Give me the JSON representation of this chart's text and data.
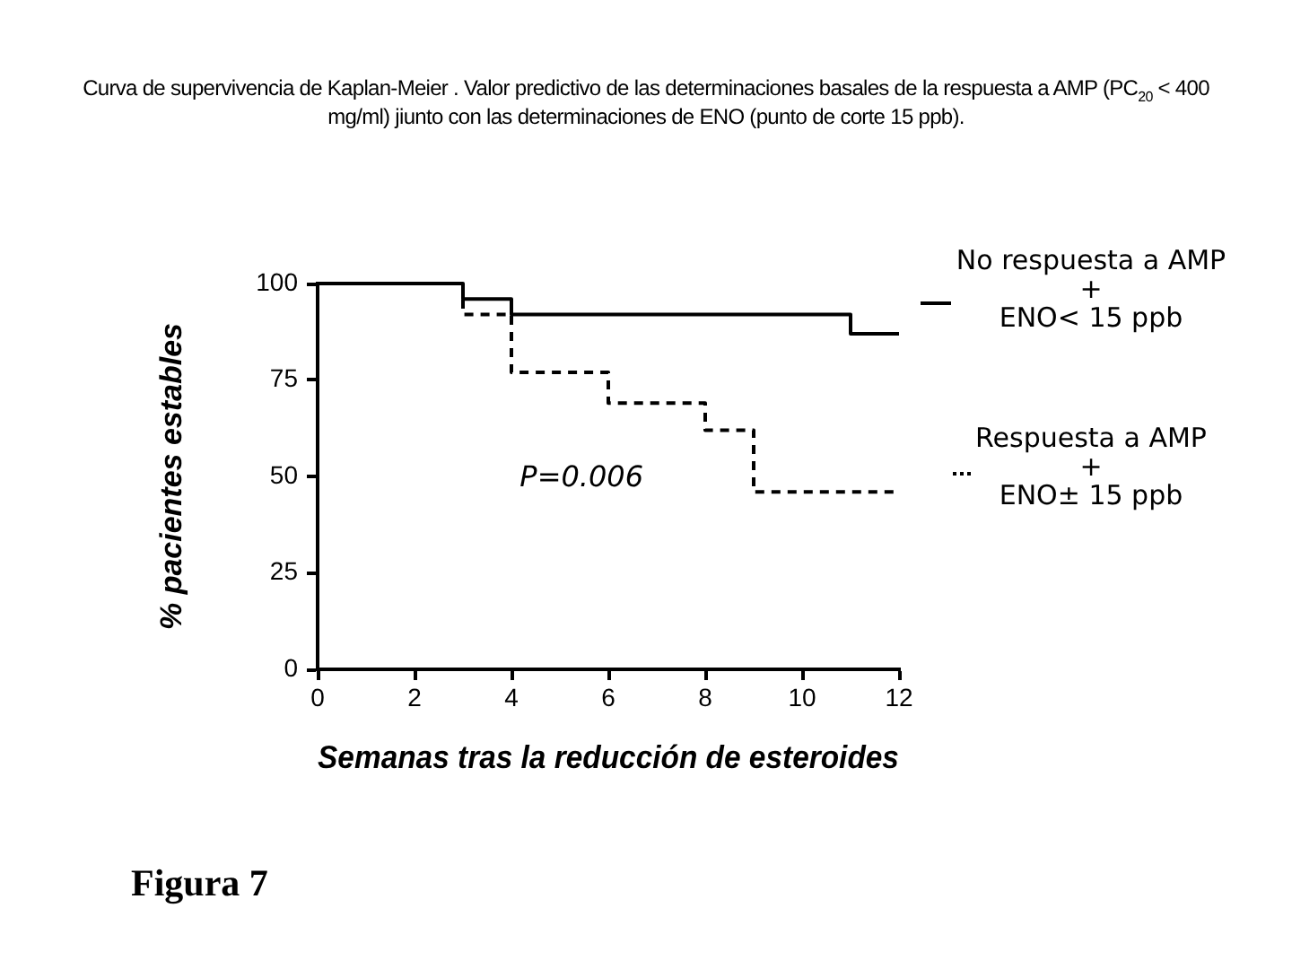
{
  "chart_data": {
    "type": "step",
    "title": "Curva de supervivencia de Kaplan-Meier . Valor predictivo de las determinaciones basales de la respuesta a AMP (PC$_{20}$ < 400 mg/ml) jiunto con las determinaciones de ENO (punto de corte 15 ppb).",
    "xlabel": "Semanas tras la reducción de esteroides",
    "ylabel": "% pacientes estables",
    "annotations": [
      "P=0.006",
      "Figura 7"
    ],
    "xlim": [
      0,
      12
    ],
    "ylim": [
      0,
      100
    ],
    "xticks": [
      0,
      2,
      4,
      6,
      8,
      10,
      12
    ],
    "yticks": [
      0,
      25,
      50,
      75,
      100
    ],
    "legend": "right",
    "series": [
      {
        "name": "No respuesta a AMP\n+\nENO< 15 ppb",
        "color": "#000000",
        "line_style": "solid",
        "x": [
          0,
          3,
          4,
          11,
          12
        ],
        "values": [
          100,
          96,
          92,
          87,
          87
        ]
      },
      {
        "name": "Respuesta a AMP\n+\nENO± 15 ppb",
        "color": "#000000",
        "line_style": "dashed",
        "x": [
          0,
          3,
          4,
          6,
          8,
          9,
          12
        ],
        "values": [
          100,
          92,
          77,
          69,
          62,
          46,
          46
        ]
      }
    ]
  }
}
